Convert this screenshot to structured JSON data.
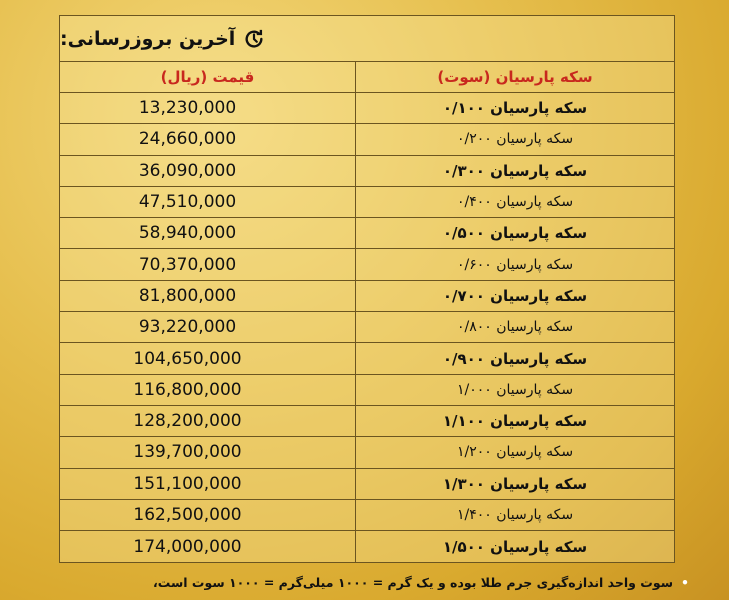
{
  "header": {
    "title": "آخرین بروزرسانی:",
    "icon": "refresh-clock-icon"
  },
  "columns": {
    "price": "قیمت (ریال)",
    "coin": "سکه پارسیان (سوت)"
  },
  "rows": [
    {
      "coin": "سکه پارسیان ۰/۱۰۰",
      "price": "13,230,000"
    },
    {
      "coin": "سکه پارسیان ۰/۲۰۰",
      "price": "24,660,000"
    },
    {
      "coin": "سکه پارسیان ۰/۳۰۰",
      "price": "36,090,000"
    },
    {
      "coin": "سکه پارسیان ۰/۴۰۰",
      "price": "47,510,000"
    },
    {
      "coin": "سکه پارسیان ۰/۵۰۰",
      "price": "58,940,000"
    },
    {
      "coin": "سکه پارسیان ۰/۶۰۰",
      "price": "70,370,000"
    },
    {
      "coin": "سکه پارسیان ۰/۷۰۰",
      "price": "81,800,000"
    },
    {
      "coin": "سکه پارسیان ۰/۸۰۰",
      "price": "93,220,000"
    },
    {
      "coin": "سکه پارسیان ۰/۹۰۰",
      "price": "104,650,000"
    },
    {
      "coin": "سکه پارسیان ۱/۰۰۰",
      "price": "116,800,000"
    },
    {
      "coin": "سکه پارسیان ۱/۱۰۰",
      "price": "128,200,000"
    },
    {
      "coin": "سکه پارسیان ۱/۲۰۰",
      "price": "139,700,000"
    },
    {
      "coin": "سکه پارسیان ۱/۳۰۰",
      "price": "151,100,000"
    },
    {
      "coin": "سکه پارسیان ۱/۴۰۰",
      "price": "162,500,000"
    },
    {
      "coin": "سکه پارسیان ۱/۵۰۰",
      "price": "174,000,000"
    }
  ],
  "note": "سوت واحد اندازه‌گیری جرم طلا بوده و یک گرم = ۱۰۰۰ میلی‌گرم = ۱۰۰۰ سوت است،",
  "colors": {
    "header_text": "#c8281e",
    "border": "#6b5520"
  }
}
